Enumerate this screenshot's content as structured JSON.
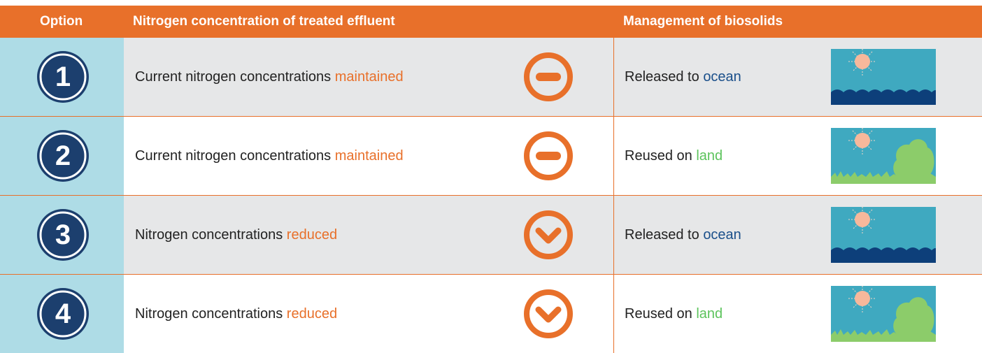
{
  "header": {
    "option": "Option",
    "nitrogen": "Nitrogen concentration of treated effluent",
    "biosolids": "Management of biosolids"
  },
  "rows": [
    {
      "option": "1",
      "nitrogen": {
        "text": "Current nitrogen concentrations",
        "highlight": "maintained"
      },
      "biosolids": {
        "text": "Released to",
        "highlight": "ocean"
      }
    },
    {
      "option": "2",
      "nitrogen": {
        "text": "Current nitrogen concentrations",
        "highlight": "maintained"
      },
      "biosolids": {
        "text": "Reused on",
        "highlight": "land"
      }
    },
    {
      "option": "3",
      "nitrogen": {
        "text": "Nitrogen concentrations",
        "highlight": "reduced"
      },
      "biosolids": {
        "text": "Released to",
        "highlight": "ocean"
      }
    },
    {
      "option": "4",
      "nitrogen": {
        "text": "Nitrogen concentrations",
        "highlight": "reduced"
      },
      "biosolids": {
        "text": "Reused on",
        "highlight": "land"
      }
    }
  ]
}
